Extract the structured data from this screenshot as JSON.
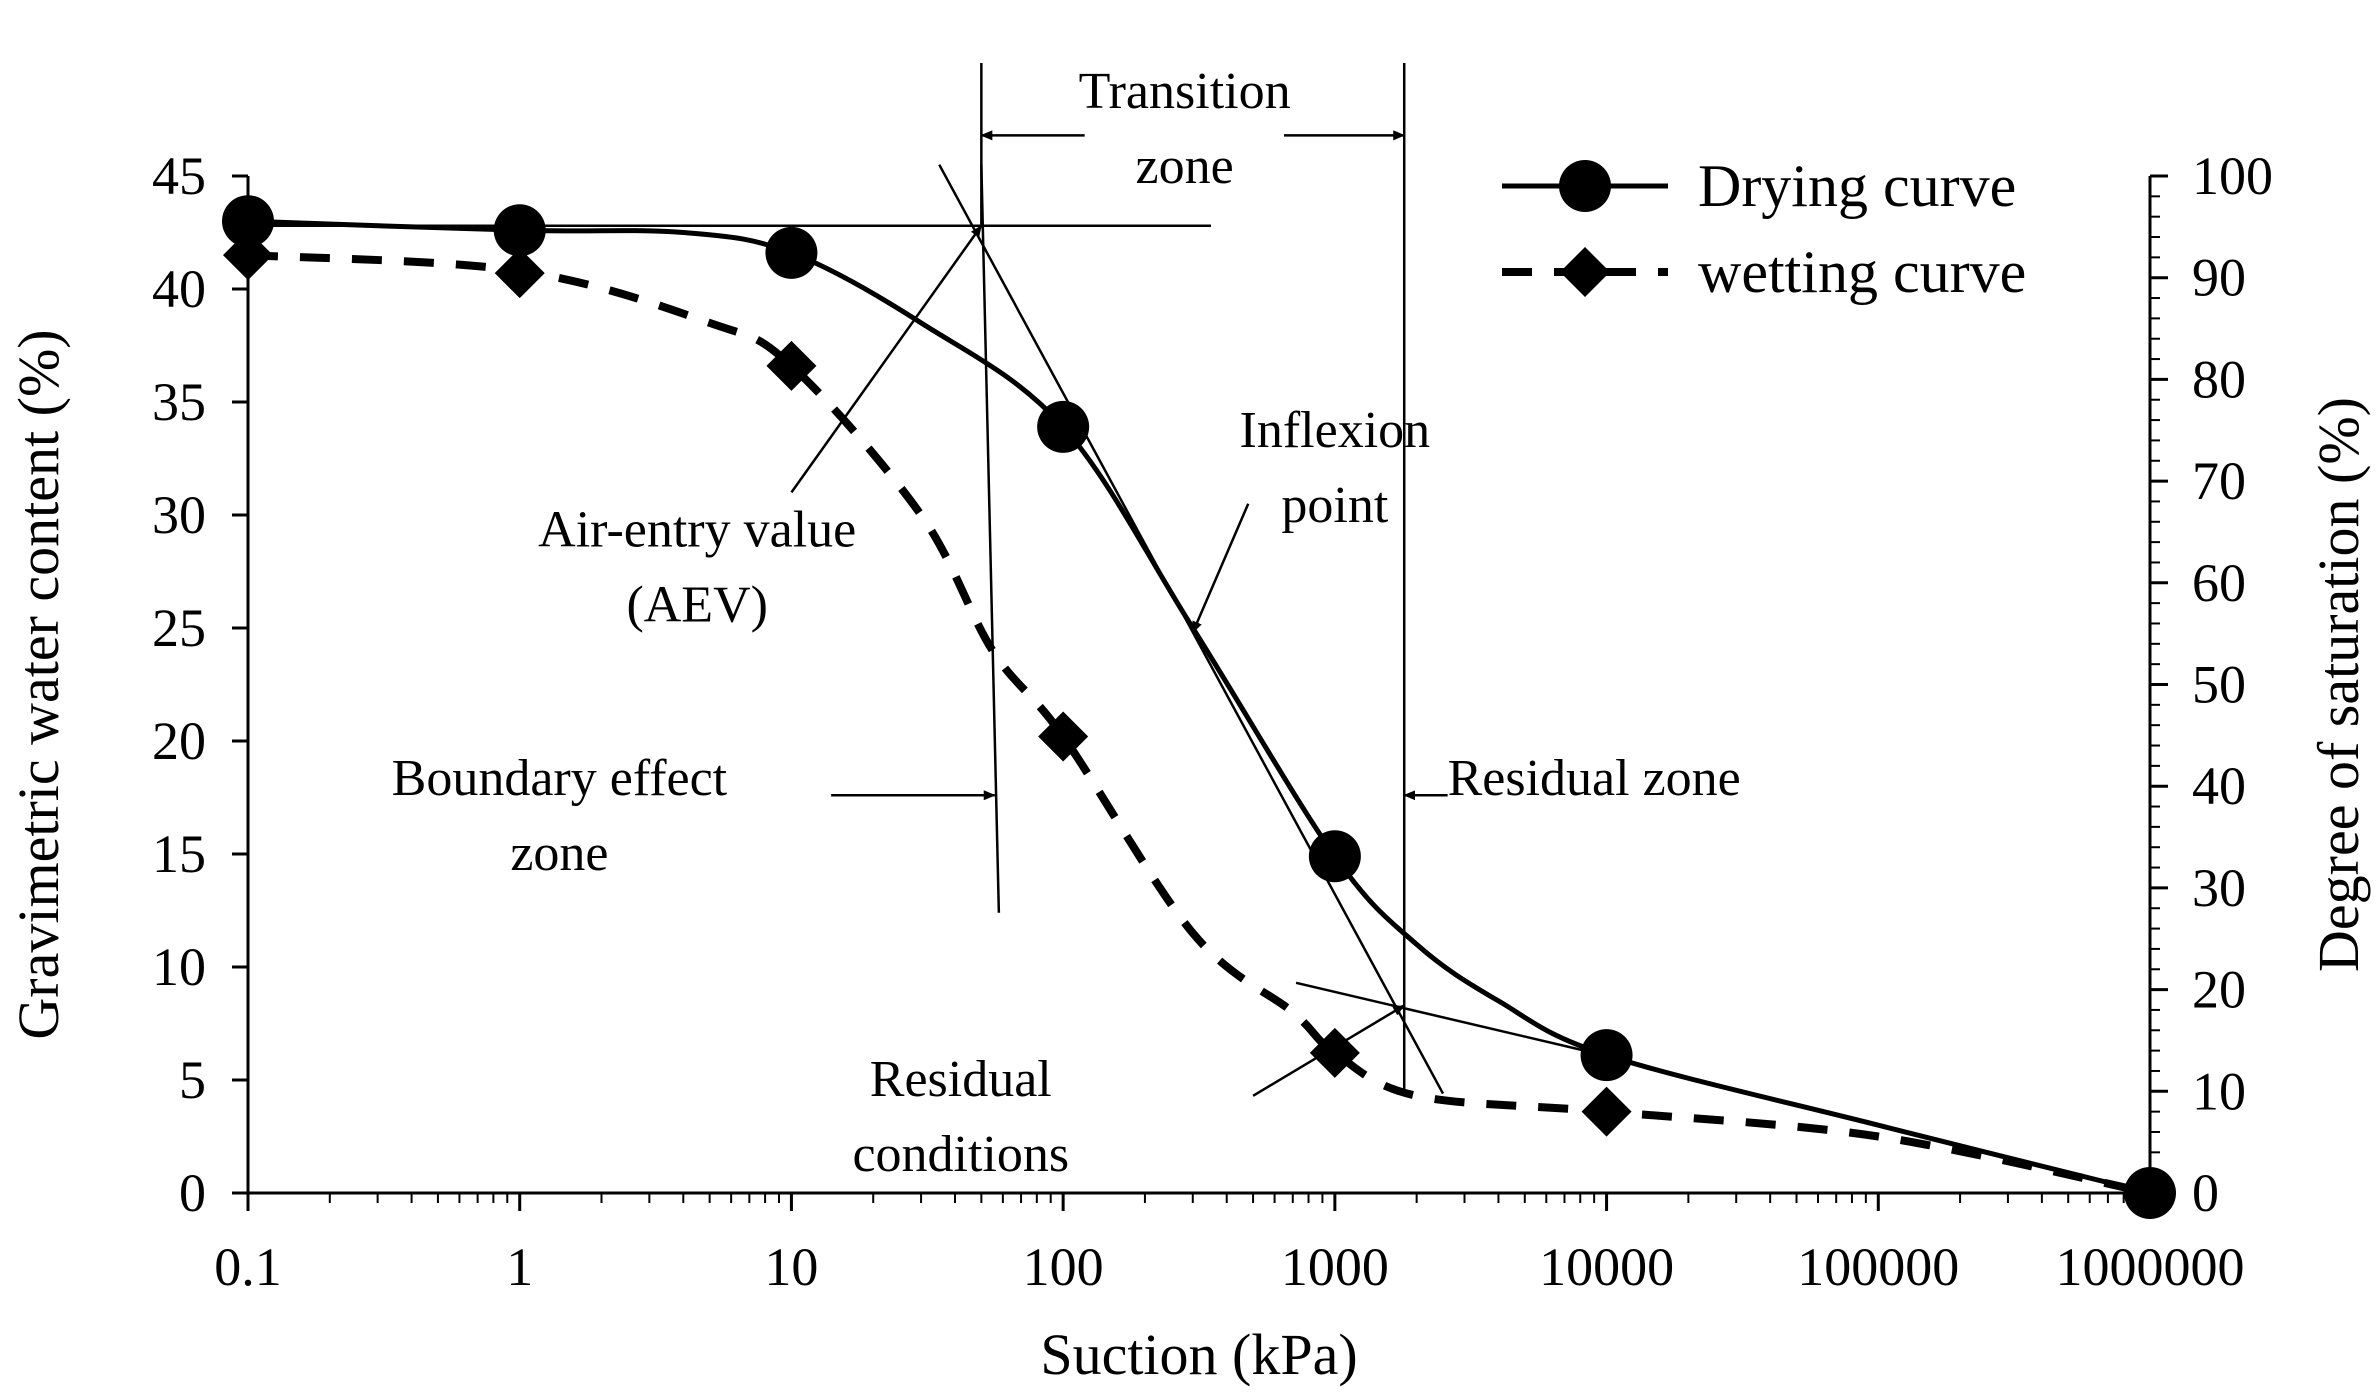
{
  "chart_data": {
    "type": "line",
    "xlabel": "Suction (kPa)",
    "ylabel": "Gravimetric water content (%)",
    "y2label": "Degree of saturation (%)",
    "x_scale": "log",
    "xlim": [
      0.1,
      1000000
    ],
    "ylim": [
      0,
      45
    ],
    "y2lim": [
      0,
      100
    ],
    "x_ticks": [
      0.1,
      1,
      10,
      100,
      1000,
      10000,
      100000,
      1000000
    ],
    "x_tick_labels": [
      "0.1",
      "1",
      "10",
      "100",
      "1000",
      "10000",
      "100000",
      "1000000"
    ],
    "y_ticks": [
      0,
      5,
      10,
      15,
      20,
      25,
      30,
      35,
      40,
      45
    ],
    "y_tick_labels": [
      "0",
      "5",
      "10",
      "15",
      "20",
      "25",
      "30",
      "35",
      "40",
      "45"
    ],
    "y2_ticks": [
      0,
      10,
      20,
      30,
      40,
      50,
      60,
      70,
      80,
      90,
      100
    ],
    "y2_tick_labels": [
      "0",
      "10",
      "20",
      "30",
      "40",
      "50",
      "60",
      "70",
      "80",
      "90",
      "100"
    ],
    "legend_position": "top-right",
    "grid": false,
    "series": [
      {
        "name": "Drying curve",
        "line_style": "solid",
        "marker": "circle",
        "points": [
          {
            "x": 0.1,
            "y": 43.0
          },
          {
            "x": 1.0,
            "y": 42.6
          },
          {
            "x": 10.0,
            "y": 41.6
          },
          {
            "x": 100.0,
            "y": 33.9
          },
          {
            "x": 1000.0,
            "y": 14.9
          },
          {
            "x": 10000.0,
            "y": 6.1
          },
          {
            "x": 1000000.0,
            "y": 0.0
          }
        ],
        "curve": [
          {
            "x": 0.1,
            "y": 43.0
          },
          {
            "x": 1.0,
            "y": 42.6
          },
          {
            "x": 4.0,
            "y": 42.5
          },
          {
            "x": 10.0,
            "y": 41.6
          },
          {
            "x": 30.0,
            "y": 38.5
          },
          {
            "x": 100.0,
            "y": 33.9
          },
          {
            "x": 300.0,
            "y": 25.0
          },
          {
            "x": 1000.0,
            "y": 14.9
          },
          {
            "x": 2000.0,
            "y": 11.0
          },
          {
            "x": 4000.0,
            "y": 8.5
          },
          {
            "x": 10000.0,
            "y": 6.1
          },
          {
            "x": 100000.0,
            "y": 3.0
          },
          {
            "x": 1000000.0,
            "y": 0.0
          }
        ]
      },
      {
        "name": "wetting curve",
        "line_style": "dashed",
        "marker": "diamond",
        "points": [
          {
            "x": 0.1,
            "y": 41.5
          },
          {
            "x": 1.0,
            "y": 40.7
          },
          {
            "x": 10.0,
            "y": 36.6
          },
          {
            "x": 100.0,
            "y": 20.2
          },
          {
            "x": 1000.0,
            "y": 6.2
          },
          {
            "x": 10000.0,
            "y": 3.6
          },
          {
            "x": 1000000.0,
            "y": 0.0
          }
        ],
        "curve": [
          {
            "x": 0.1,
            "y": 41.5
          },
          {
            "x": 1.0,
            "y": 40.8
          },
          {
            "x": 5.0,
            "y": 38.5
          },
          {
            "x": 10.0,
            "y": 36.6
          },
          {
            "x": 30.0,
            "y": 30.0
          },
          {
            "x": 55.0,
            "y": 24.0
          },
          {
            "x": 100.0,
            "y": 20.2
          },
          {
            "x": 300.0,
            "y": 11.5
          },
          {
            "x": 700.0,
            "y": 8.0
          },
          {
            "x": 1000.0,
            "y": 6.2
          },
          {
            "x": 2000.0,
            "y": 4.3
          },
          {
            "x": 10000.0,
            "y": 3.6
          },
          {
            "x": 100000.0,
            "y": 2.5
          },
          {
            "x": 1000000.0,
            "y": 0.0
          }
        ]
      }
    ],
    "reference_lines": [
      {
        "name": "aev-horizontal-tangent",
        "from": {
          "x": 0.1,
          "y": 42.8
        },
        "to": {
          "x": 350,
          "y": 42.8
        }
      },
      {
        "name": "steep-tangent",
        "from": {
          "x": 35,
          "y": 45.5
        },
        "to": {
          "x": 2500,
          "y": 4.4
        }
      },
      {
        "name": "residual-tangent",
        "from": {
          "x": 720,
          "y": 9.3
        },
        "to": {
          "x": 9000,
          "y": 6.2
        }
      },
      {
        "name": "boundary-line",
        "from": {
          "x": 50,
          "y": 45.5
        },
        "to": {
          "x": 58,
          "y": 12.4
        }
      },
      {
        "name": "air-entry-line",
        "from": {
          "x": 50,
          "y": 50.0
        },
        "to": {
          "x": 50,
          "y": 42.8
        }
      },
      {
        "name": "residual-line",
        "from": {
          "x": 1800,
          "y": 50.0
        },
        "to": {
          "x": 1800,
          "y": 4.4
        }
      }
    ],
    "annotations": [
      {
        "name": "transition-zone-label",
        "lines": [
          "Transition",
          "zone"
        ],
        "at": {
          "x": 280,
          "y": 48.0
        },
        "anchor": "middle"
      },
      {
        "name": "inflexion-point-label",
        "lines": [
          "Inflexion",
          "point"
        ],
        "at": {
          "x": 1000,
          "y": 33.0
        },
        "anchor": "middle"
      },
      {
        "name": "air-entry-value-label",
        "lines": [
          "Air-entry value",
          "(AEV)"
        ],
        "at": {
          "x": 4.5,
          "y": 28.6
        },
        "anchor": "middle"
      },
      {
        "name": "boundary-effect-zone-label",
        "lines": [
          "Boundary effect",
          "zone"
        ],
        "at": {
          "x": 1.4,
          "y": 17.6
        },
        "anchor": "middle"
      },
      {
        "name": "residual-zone-label",
        "lines": [
          "Residual zone"
        ],
        "at": {
          "x": 2600,
          "y": 17.6
        },
        "anchor": "start"
      },
      {
        "name": "residual-conditions-label",
        "lines": [
          "Residual",
          "conditions"
        ],
        "at": {
          "x": 42,
          "y": 4.3
        },
        "anchor": "middle"
      }
    ],
    "arrows": [
      {
        "name": "transition-arrow-left",
        "from": {
          "x": 120,
          "y": 46.8
        },
        "to": {
          "x": 50,
          "y": 46.8
        }
      },
      {
        "name": "transition-arrow-right",
        "from": {
          "x": 650,
          "y": 46.8
        },
        "to": {
          "x": 1800,
          "y": 46.8
        }
      },
      {
        "name": "aev-arrow",
        "from": {
          "x": 10,
          "y": 31.0
        },
        "to": {
          "x": 50,
          "y": 42.8
        }
      },
      {
        "name": "inflexion-arrow",
        "from": {
          "x": 480,
          "y": 30.5
        },
        "to": {
          "x": 300,
          "y": 24.8
        }
      },
      {
        "name": "boundary-arrow",
        "from": {
          "x": 14,
          "y": 17.6
        },
        "to": {
          "x": 56,
          "y": 17.6
        }
      },
      {
        "name": "residual-zone-arrow",
        "from": {
          "x": 2600,
          "y": 17.6
        },
        "to": {
          "x": 1800,
          "y": 17.6
        }
      },
      {
        "name": "residual-conditions-arrow",
        "from": {
          "x": 500,
          "y": 4.3
        },
        "to": {
          "x": 1800,
          "y": 8.3
        }
      }
    ]
  }
}
